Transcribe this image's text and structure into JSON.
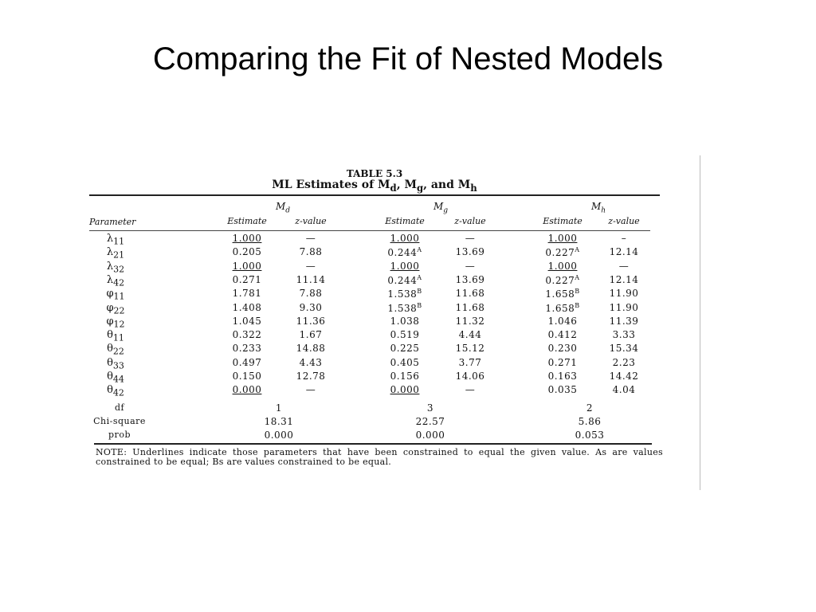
{
  "slide_title": "Comparing the Fit of Nested Models",
  "table": {
    "caption_number": "TABLE 5.3",
    "caption": "ML Estimates of Md, Mg, and Mh",
    "models": [
      "Md",
      "Mg",
      "Mh"
    ],
    "parameter_header": "Parameter",
    "estimate_header": "Estimate",
    "z_header": "z-value",
    "rows": [
      {
        "param": "λ",
        "sub": "11",
        "cells": [
          {
            "est": "1.000",
            "ul": true,
            "sup": "",
            "z": "—"
          },
          {
            "est": "1.000",
            "ul": true,
            "sup": "",
            "z": "—"
          },
          {
            "est": "1.000",
            "ul": true,
            "sup": "",
            "z": "–"
          }
        ]
      },
      {
        "param": "λ",
        "sub": "21",
        "cells": [
          {
            "est": "0.205",
            "ul": false,
            "sup": "",
            "z": "7.88"
          },
          {
            "est": "0.244",
            "ul": false,
            "sup": "A",
            "z": "13.69"
          },
          {
            "est": "0.227",
            "ul": false,
            "sup": "A",
            "z": "12.14"
          }
        ]
      },
      {
        "param": "λ",
        "sub": "32",
        "cells": [
          {
            "est": "1.000",
            "ul": true,
            "sup": "",
            "z": "—"
          },
          {
            "est": "1.000",
            "ul": true,
            "sup": "",
            "z": "—"
          },
          {
            "est": "1.000",
            "ul": true,
            "sup": "",
            "z": "—"
          }
        ]
      },
      {
        "param": "λ",
        "sub": "42",
        "cells": [
          {
            "est": "0.271",
            "ul": false,
            "sup": "",
            "z": "11.14"
          },
          {
            "est": "0.244",
            "ul": false,
            "sup": "A",
            "z": "13.69"
          },
          {
            "est": "0.227",
            "ul": false,
            "sup": "A",
            "z": "12.14"
          }
        ]
      },
      {
        "param": "φ",
        "sub": "11",
        "cells": [
          {
            "est": "1.781",
            "ul": false,
            "sup": "",
            "z": "7.88"
          },
          {
            "est": "1.538",
            "ul": false,
            "sup": "B",
            "z": "11.68"
          },
          {
            "est": "1.658",
            "ul": false,
            "sup": "B",
            "z": "11.90"
          }
        ]
      },
      {
        "param": "φ",
        "sub": "22",
        "cells": [
          {
            "est": "1.408",
            "ul": false,
            "sup": "",
            "z": "9.30"
          },
          {
            "est": "1.538",
            "ul": false,
            "sup": "B",
            "z": "11.68"
          },
          {
            "est": "1.658",
            "ul": false,
            "sup": "B",
            "z": "11.90"
          }
        ]
      },
      {
        "param": "φ",
        "sub": "12",
        "cells": [
          {
            "est": "1.045",
            "ul": false,
            "sup": "",
            "z": "11.36"
          },
          {
            "est": "1.038",
            "ul": false,
            "sup": "",
            "z": "11.32"
          },
          {
            "est": "1.046",
            "ul": false,
            "sup": "",
            "z": "11.39"
          }
        ]
      },
      {
        "param": "θ",
        "sub": "11",
        "cells": [
          {
            "est": "0.322",
            "ul": false,
            "sup": "",
            "z": "1.67"
          },
          {
            "est": "0.519",
            "ul": false,
            "sup": "",
            "z": "4.44"
          },
          {
            "est": "0.412",
            "ul": false,
            "sup": "",
            "z": "3.33"
          }
        ]
      },
      {
        "param": "θ",
        "sub": "22",
        "cells": [
          {
            "est": "0.233",
            "ul": false,
            "sup": "",
            "z": "14.88"
          },
          {
            "est": "0.225",
            "ul": false,
            "sup": "",
            "z": "15.12"
          },
          {
            "est": "0.230",
            "ul": false,
            "sup": "",
            "z": "15.34"
          }
        ]
      },
      {
        "param": "θ",
        "sub": "33",
        "cells": [
          {
            "est": "0.497",
            "ul": false,
            "sup": "",
            "z": "4.43"
          },
          {
            "est": "0.405",
            "ul": false,
            "sup": "",
            "z": "3.77"
          },
          {
            "est": "0.271",
            "ul": false,
            "sup": "",
            "z": "2.23"
          }
        ]
      },
      {
        "param": "θ",
        "sub": "44",
        "cells": [
          {
            "est": "0.150",
            "ul": false,
            "sup": "",
            "z": "12.78"
          },
          {
            "est": "0.156",
            "ul": false,
            "sup": "",
            "z": "14.06"
          },
          {
            "est": "0.163",
            "ul": false,
            "sup": "",
            "z": "14.42"
          }
        ]
      },
      {
        "param": "θ",
        "sub": "42",
        "cells": [
          {
            "est": "0.000",
            "ul": true,
            "sup": "",
            "z": "—"
          },
          {
            "est": "0.000",
            "ul": true,
            "sup": "",
            "z": "—"
          },
          {
            "est": "0.035",
            "ul": false,
            "sup": "",
            "z": "4.04"
          }
        ]
      }
    ],
    "fit": [
      {
        "label": "df",
        "values": [
          "1",
          "3",
          "2"
        ]
      },
      {
        "label": "Chi-square",
        "values": [
          "18.31",
          "22.57",
          "5.86"
        ]
      },
      {
        "label": "prob",
        "values": [
          "0.000",
          "0.000",
          "0.053"
        ]
      }
    ],
    "note": "NOTE: Underlines indicate those parameters that have been constrained to equal the given value. As are values constrained to be equal; Bs are values constrained to be equal."
  }
}
